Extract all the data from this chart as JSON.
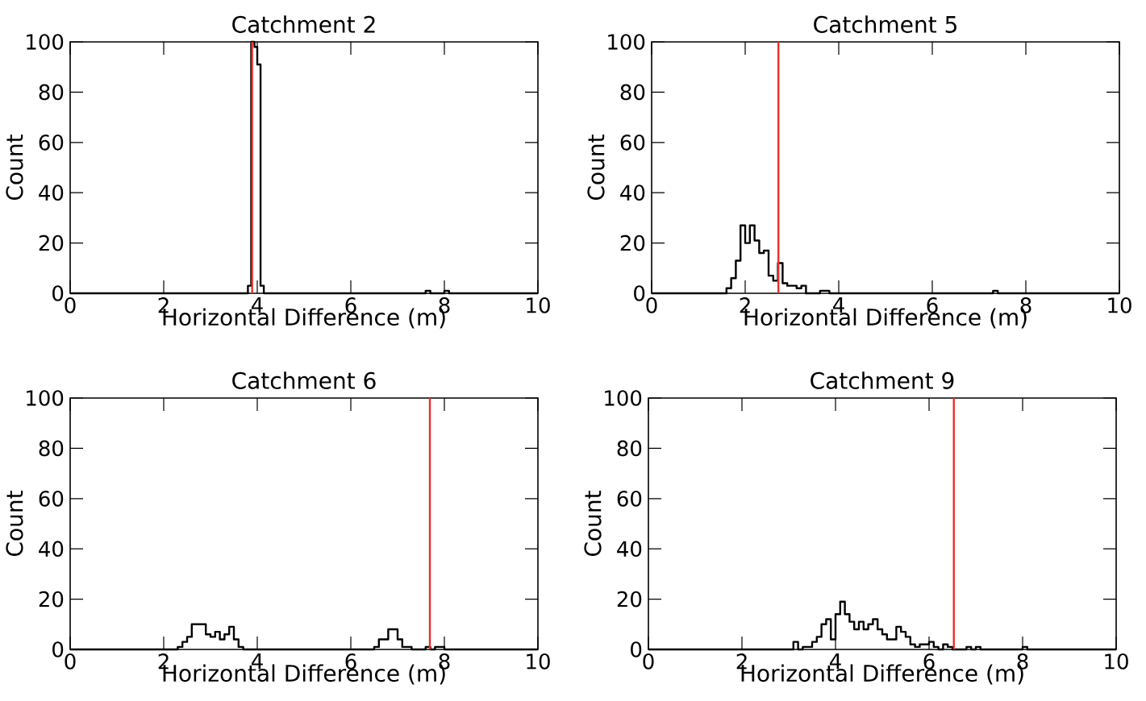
{
  "chart_data": [
    {
      "type": "histogram",
      "title": "Catchment 2",
      "xlabel": "Horizontal Difference (m)",
      "ylabel": "Count",
      "color": "#000000",
      "bins": [
        0,
        3.8,
        3.87,
        3.94,
        4.0,
        4.07,
        4.14,
        7.6,
        7.7,
        8.0,
        8.1,
        10
      ],
      "values": [
        0,
        3,
        100,
        98,
        91,
        3,
        0,
        1,
        0,
        1,
        0
      ],
      "xlim": [
        0,
        10
      ],
      "ylim": [
        0,
        100
      ],
      "xticks": [
        0,
        2,
        4,
        6,
        8,
        10
      ],
      "yticks": [
        0,
        20,
        40,
        60,
        80,
        100
      ],
      "ref_lines": [
        {
          "axis": "x",
          "value": 3.89,
          "color": "#e8302a"
        }
      ]
    },
    {
      "type": "histogram",
      "title": "Catchment 5",
      "xlabel": "Horizontal Difference (m)",
      "ylabel": "Count",
      "color": "#000000",
      "bins": [
        0,
        1.6,
        1.7,
        1.8,
        1.9,
        2.0,
        2.1,
        2.2,
        2.3,
        2.4,
        2.5,
        2.6,
        2.7,
        2.8,
        2.9,
        3.0,
        3.1,
        3.2,
        3.3,
        3.6,
        3.8,
        7.3,
        7.4,
        10
      ],
      "values": [
        0,
        2,
        6,
        13,
        27,
        20,
        27,
        21,
        16,
        17,
        7,
        5,
        12,
        4,
        3,
        3,
        2,
        3,
        0,
        1,
        0,
        1,
        0
      ],
      "xlim": [
        0,
        10
      ],
      "ylim": [
        0,
        100
      ],
      "xticks": [
        0,
        2,
        4,
        6,
        8,
        10
      ],
      "yticks": [
        0,
        20,
        40,
        60,
        80,
        100
      ],
      "ref_lines": [
        {
          "axis": "x",
          "value": 2.71,
          "color": "#e8302a"
        }
      ]
    },
    {
      "type": "histogram",
      "title": "Catchment 6",
      "xlabel": "Horizontal Difference (m)",
      "ylabel": "Count",
      "color": "#000000",
      "bins": [
        0,
        2.3,
        2.4,
        2.5,
        2.6,
        2.7,
        2.8,
        2.9,
        3.0,
        3.1,
        3.2,
        3.3,
        3.4,
        3.5,
        3.6,
        3.7,
        6.5,
        6.6,
        6.7,
        6.8,
        6.9,
        7.0,
        7.1,
        7.2,
        7.3,
        7.6,
        7.7,
        7.8,
        7.9,
        8.0,
        10
      ],
      "values": [
        0,
        1,
        3,
        5,
        10,
        10,
        10,
        6,
        5,
        7,
        4,
        6,
        9,
        4,
        1,
        0,
        1,
        4,
        4,
        8,
        8,
        4,
        1,
        1,
        0,
        1,
        0,
        1,
        1,
        0
      ],
      "xlim": [
        0,
        10
      ],
      "ylim": [
        0,
        100
      ],
      "xticks": [
        0,
        2,
        4,
        6,
        8,
        10
      ],
      "yticks": [
        0,
        20,
        40,
        60,
        80,
        100
      ],
      "ref_lines": [
        {
          "axis": "x",
          "value": 7.69,
          "color": "#e8302a"
        }
      ]
    },
    {
      "type": "histogram",
      "title": "Catchment 9",
      "xlabel": "Horizontal Difference (m)",
      "ylabel": "Count",
      "color": "#000000",
      "bins": [
        0,
        3.1,
        3.2,
        3.3,
        3.4,
        3.5,
        3.6,
        3.7,
        3.8,
        3.9,
        4.0,
        4.1,
        4.2,
        4.3,
        4.4,
        4.5,
        4.6,
        4.7,
        4.8,
        4.9,
        5.0,
        5.1,
        5.2,
        5.3,
        5.4,
        5.5,
        5.6,
        5.7,
        5.8,
        5.9,
        6.0,
        6.1,
        6.2,
        6.3,
        6.4,
        6.5,
        6.8,
        6.9,
        7.0,
        7.1,
        8.0,
        8.1,
        10
      ],
      "values": [
        0,
        3,
        0,
        1,
        1,
        3,
        5,
        10,
        12,
        4,
        14,
        19,
        14,
        11,
        8,
        11,
        8,
        10,
        12,
        8,
        6,
        4,
        4,
        9,
        7,
        5,
        2,
        1,
        2,
        2,
        3,
        1,
        0,
        2,
        1,
        0,
        1,
        0,
        1,
        0,
        1,
        0
      ],
      "xlim": [
        0,
        10
      ],
      "ylim": [
        0,
        100
      ],
      "xticks": [
        0,
        2,
        4,
        6,
        8,
        10
      ],
      "yticks": [
        0,
        20,
        40,
        60,
        80,
        100
      ],
      "ref_lines": [
        {
          "axis": "x",
          "value": 6.53,
          "color": "#e8302a"
        }
      ]
    }
  ]
}
